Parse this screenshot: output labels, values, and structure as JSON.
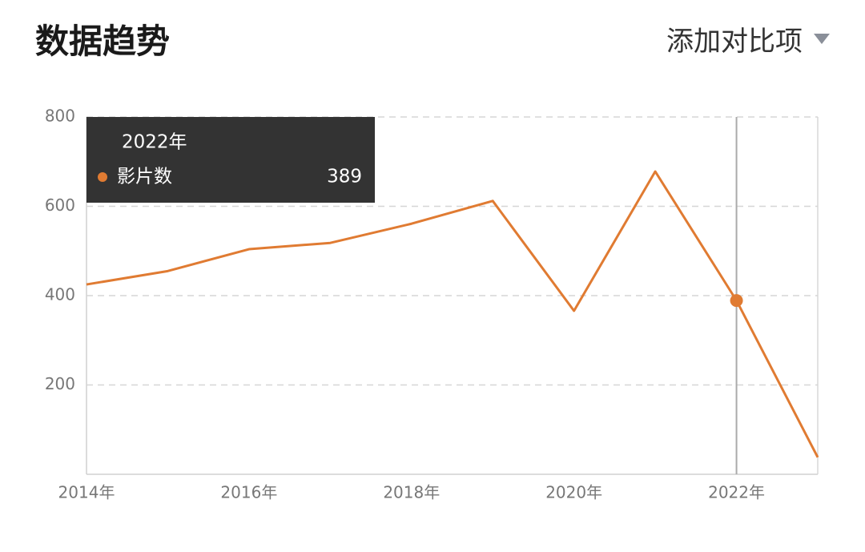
{
  "header": {
    "title": "数据趋势",
    "compare_button": "添加对比项"
  },
  "chart_data": {
    "type": "line",
    "categories": [
      "2014年",
      null,
      "2016年",
      null,
      "2018年",
      null,
      "2020年",
      null,
      "2022年",
      null
    ],
    "series": [
      {
        "name": "影片数",
        "color": "#e07b32",
        "values": [
          425,
          455,
          504,
          518,
          561,
          612,
          366,
          678,
          389,
          38
        ]
      }
    ],
    "ylim": [
      0,
      800
    ],
    "yticks": [
      200,
      400,
      600,
      800
    ],
    "grid": true,
    "highlight_index": 8
  }
}
